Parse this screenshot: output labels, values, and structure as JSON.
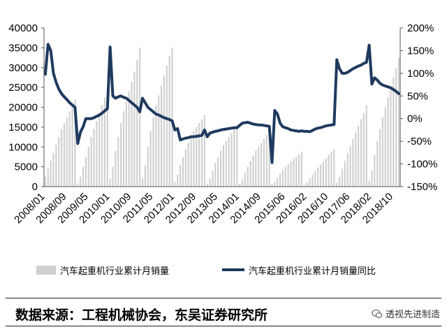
{
  "chart_data": {
    "type": "bar+line",
    "title": "",
    "xlabel": "",
    "ylabel": "",
    "y_left": {
      "range": [
        0,
        40000
      ],
      "ticks": [
        "40000",
        "35000",
        "30000",
        "25000",
        "20000",
        "15000",
        "10000",
        "5000",
        "0"
      ]
    },
    "y_right": {
      "range": [
        -150,
        200
      ],
      "ticks": [
        "200%",
        "150%",
        "100%",
        "50%",
        "0%",
        "-50%",
        "-100%",
        "-150%"
      ]
    },
    "x_ticks": [
      "2008/01",
      "2008/09",
      "2009/05",
      "2010/01",
      "2010/09",
      "2011/05",
      "2012/01",
      "2012/09",
      "2013/05",
      "2014/01",
      "2014/09",
      "2015/06",
      "2016/02",
      "2016/10",
      "2017/06",
      "2018/02",
      "2018/10"
    ],
    "bar_series": {
      "name": "汽车起重机行业累计月销量",
      "color": "#d0d0d0",
      "years": [
        {
          "start": "2008/01",
          "values": [
            2500,
            4500,
            6500,
            8500,
            10500,
            12500,
            14500,
            16000,
            17500,
            19000,
            20500,
            22000
          ]
        },
        {
          "start": "2009/01",
          "values": [
            800,
            2500,
            5000,
            7500,
            10000,
            12500,
            14500,
            16500,
            18500,
            20500,
            22500,
            24500
          ]
        },
        {
          "start": "2010/01",
          "values": [
            2000,
            5000,
            9000,
            12500,
            16000,
            19000,
            21500,
            24000,
            26500,
            29000,
            32000,
            35000
          ]
        },
        {
          "start": "2011/01",
          "values": [
            2200,
            5500,
            10000,
            14000,
            17500,
            20500,
            23000,
            25500,
            28000,
            30500,
            33000,
            35000
          ]
        },
        {
          "start": "2012/01",
          "values": [
            1200,
            3000,
            5500,
            7500,
            9500,
            11000,
            12500,
            14000,
            15000,
            16000,
            17000,
            18000
          ]
        },
        {
          "start": "2013/01",
          "values": [
            800,
            2000,
            4000,
            6000,
            7500,
            9000,
            10500,
            11500,
            12500,
            13500,
            14500,
            15500
          ]
        },
        {
          "start": "2014/01",
          "values": [
            700,
            1800,
            3500,
            5000,
            6500,
            7800,
            9000,
            10000,
            11000,
            12000,
            13000,
            13500
          ]
        },
        {
          "start": "2015/01",
          "values": [
            500,
            1200,
            2300,
            3300,
            4200,
            5000,
            5700,
            6400,
            7000,
            7600,
            8200,
            8800
          ]
        },
        {
          "start": "2016/01",
          "values": [
            400,
            1100,
            2100,
            3100,
            4000,
            4800,
            5500,
            6300,
            7100,
            8000,
            8800,
            9500
          ]
        },
        {
          "start": "2017/01",
          "values": [
            900,
            2400,
            4500,
            6500,
            8500,
            10300,
            12000,
            13700,
            15300,
            17000,
            18500,
            20500
          ]
        },
        {
          "start": "2018/01",
          "values": [
            1500,
            4000,
            8000,
            11500,
            14500,
            17500,
            20000,
            22500,
            25000,
            27500,
            29800,
            32500
          ]
        }
      ]
    },
    "line_series": {
      "name": "汽车起重机行业累计月销量同比",
      "color": "#1f3a5f",
      "points": [
        [
          "2008/01",
          98
        ],
        [
          "2008/02",
          164
        ],
        [
          "2008/03",
          150
        ],
        [
          "2008/04",
          100
        ],
        [
          "2008/05",
          80
        ],
        [
          "2008/06",
          65
        ],
        [
          "2008/07",
          55
        ],
        [
          "2008/08",
          48
        ],
        [
          "2008/09",
          42
        ],
        [
          "2008/10",
          35
        ],
        [
          "2008/11",
          30
        ],
        [
          "2008/12",
          25
        ],
        [
          "2009/01",
          -55
        ],
        [
          "2009/02",
          -30
        ],
        [
          "2009/03",
          -18
        ],
        [
          "2009/04",
          0
        ],
        [
          "2009/05",
          0
        ],
        [
          "2009/06",
          0
        ],
        [
          "2009/07",
          2
        ],
        [
          "2009/08",
          5
        ],
        [
          "2009/09",
          8
        ],
        [
          "2009/10",
          12
        ],
        [
          "2009/11",
          17
        ],
        [
          "2009/12",
          22
        ],
        [
          "2010/01",
          158
        ],
        [
          "2010/02",
          50
        ],
        [
          "2010/03",
          45
        ],
        [
          "2010/04",
          48
        ],
        [
          "2010/05",
          50
        ],
        [
          "2010/06",
          47
        ],
        [
          "2010/07",
          45
        ],
        [
          "2010/08",
          40
        ],
        [
          "2010/09",
          35
        ],
        [
          "2010/10",
          30
        ],
        [
          "2010/11",
          25
        ],
        [
          "2010/12",
          15
        ],
        [
          "2011/01",
          45
        ],
        [
          "2011/02",
          35
        ],
        [
          "2011/03",
          25
        ],
        [
          "2011/04",
          20
        ],
        [
          "2011/05",
          15
        ],
        [
          "2011/06",
          10
        ],
        [
          "2011/07",
          8
        ],
        [
          "2011/08",
          5
        ],
        [
          "2011/09",
          2
        ],
        [
          "2011/10",
          0
        ],
        [
          "2011/11",
          -2
        ],
        [
          "2011/12",
          -5
        ],
        [
          "2012/01",
          -25
        ],
        [
          "2012/02",
          -22
        ],
        [
          "2012/03",
          -47
        ],
        [
          "2012/04",
          -45
        ],
        [
          "2012/05",
          -43
        ],
        [
          "2012/06",
          -42
        ],
        [
          "2012/07",
          -40
        ],
        [
          "2012/08",
          -40
        ],
        [
          "2012/09",
          -39
        ],
        [
          "2012/10",
          -38
        ],
        [
          "2012/11",
          -37
        ],
        [
          "2012/12",
          -25
        ],
        [
          "2013/01",
          -40
        ],
        [
          "2013/02",
          -32
        ],
        [
          "2013/03",
          -30
        ],
        [
          "2013/04",
          -28
        ],
        [
          "2013/05",
          -27
        ],
        [
          "2013/06",
          -25
        ],
        [
          "2013/07",
          -24
        ],
        [
          "2013/08",
          -23
        ],
        [
          "2013/09",
          -22
        ],
        [
          "2013/10",
          -21
        ],
        [
          "2013/11",
          -20
        ],
        [
          "2013/12",
          -20
        ],
        [
          "2014/01",
          -15
        ],
        [
          "2014/02",
          -10
        ],
        [
          "2014/03",
          -9
        ],
        [
          "2014/04",
          -8
        ],
        [
          "2014/05",
          -10
        ],
        [
          "2014/06",
          -12
        ],
        [
          "2014/07",
          -13
        ],
        [
          "2014/08",
          -14
        ],
        [
          "2014/09",
          -14
        ],
        [
          "2014/10",
          -15
        ],
        [
          "2014/11",
          -16
        ],
        [
          "2014/12",
          -17
        ],
        [
          "2015/01",
          -97
        ],
        [
          "2015/02",
          18
        ],
        [
          "2015/03",
          10
        ],
        [
          "2015/04",
          -10
        ],
        [
          "2015/05",
          -18
        ],
        [
          "2015/06",
          -20
        ],
        [
          "2015/07",
          -22
        ],
        [
          "2015/08",
          -25
        ],
        [
          "2015/09",
          -26
        ],
        [
          "2015/10",
          -27
        ],
        [
          "2015/11",
          -28
        ],
        [
          "2015/12",
          -27
        ],
        [
          "2016/01",
          -28
        ],
        [
          "2016/02",
          -28
        ],
        [
          "2016/03",
          -29
        ],
        [
          "2016/04",
          -26
        ],
        [
          "2016/05",
          -23
        ],
        [
          "2016/06",
          -21
        ],
        [
          "2016/07",
          -20
        ],
        [
          "2016/08",
          -18
        ],
        [
          "2016/09",
          -16
        ],
        [
          "2016/10",
          -15
        ],
        [
          "2016/11",
          -14
        ],
        [
          "2016/12",
          -13
        ],
        [
          "2017/01",
          130
        ],
        [
          "2017/02",
          110
        ],
        [
          "2017/03",
          100
        ],
        [
          "2017/04",
          100
        ],
        [
          "2017/05",
          102
        ],
        [
          "2017/06",
          106
        ],
        [
          "2017/07",
          110
        ],
        [
          "2017/08",
          113
        ],
        [
          "2017/09",
          116
        ],
        [
          "2017/10",
          118
        ],
        [
          "2017/11",
          122
        ],
        [
          "2017/12",
          124
        ],
        [
          "2018/01",
          162
        ],
        [
          "2018/02",
          76
        ],
        [
          "2018/03",
          90
        ],
        [
          "2018/04",
          85
        ],
        [
          "2018/05",
          78
        ],
        [
          "2018/06",
          74
        ],
        [
          "2018/07",
          72
        ],
        [
          "2018/08",
          70
        ],
        [
          "2018/09",
          68
        ],
        [
          "2018/10",
          64
        ],
        [
          "2018/11",
          60
        ],
        [
          "2018/12",
          55
        ]
      ]
    },
    "legend_position": "bottom",
    "grid": false
  },
  "source_note": "数据来源：工程机械协会，东吴证券研究所",
  "watermark": "透视先进制造"
}
